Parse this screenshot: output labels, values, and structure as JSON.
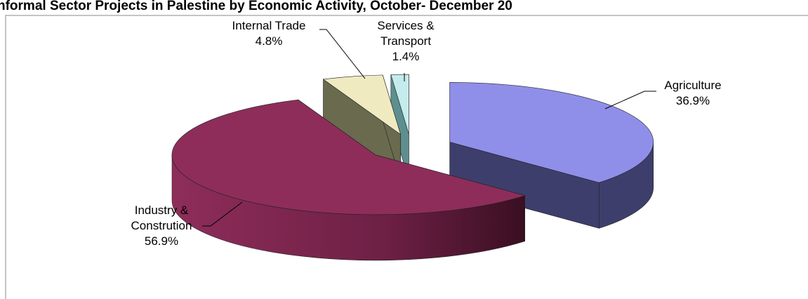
{
  "chart_data": {
    "type": "pie3d",
    "title": "nformal Sector  Projects in Palestine by  Economic Activity, October- December 20",
    "categories": [
      "Agriculture",
      "Industry & Constrution",
      "Internal Trade",
      "Services & Transport"
    ],
    "values": [
      36.9,
      56.9,
      4.8,
      1.4
    ],
    "value_labels": [
      "36.9%",
      "56.9%",
      "4.8%",
      "1.4%"
    ],
    "colors": [
      "#8f8fea",
      "#8e2d5a",
      "#efeac0",
      "#c4ecec"
    ],
    "side_colors": [
      "#3e3e6c",
      "url(#indGrad)",
      "#6a6a4e",
      "#5d8f8f"
    ]
  }
}
